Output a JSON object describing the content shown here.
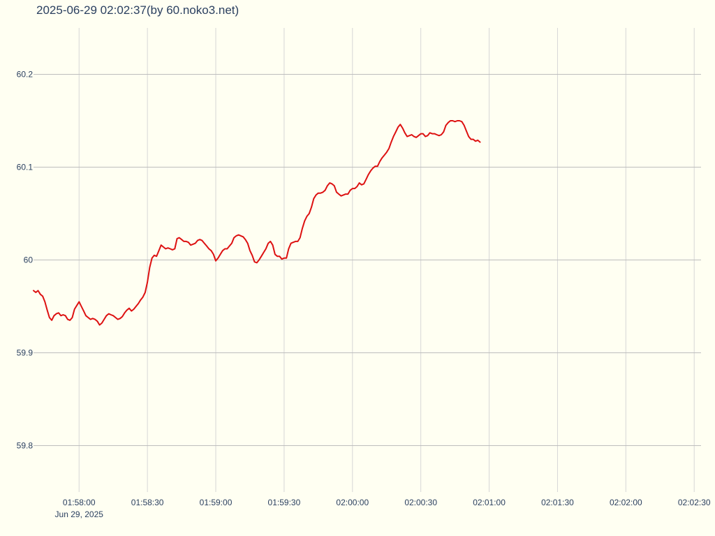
{
  "chart_data": {
    "type": "line",
    "title": "2025-06-29 02:02:37(by 60.noko3.net)",
    "xlabel": "",
    "ylabel": "",
    "x_range": [
      "01:57:40",
      "02:02:33"
    ],
    "ylim": [
      59.75,
      60.25
    ],
    "x_ticks": [
      {
        "time": "01:58:00",
        "label": "01:58:00",
        "sublabel": "Jun 29, 2025"
      },
      {
        "time": "01:58:30",
        "label": "01:58:30"
      },
      {
        "time": "01:59:00",
        "label": "01:59:00"
      },
      {
        "time": "01:59:30",
        "label": "01:59:30"
      },
      {
        "time": "02:00:00",
        "label": "02:00:00"
      },
      {
        "time": "02:00:30",
        "label": "02:00:30"
      },
      {
        "time": "02:01:00",
        "label": "02:01:00"
      },
      {
        "time": "02:01:30",
        "label": "02:01:30"
      },
      {
        "time": "02:02:00",
        "label": "02:02:00"
      },
      {
        "time": "02:02:30",
        "label": "02:02:30"
      }
    ],
    "y_ticks": [
      {
        "value": 59.8,
        "label": "59.8"
      },
      {
        "value": 59.9,
        "label": "59.9"
      },
      {
        "value": 60.0,
        "label": "60"
      },
      {
        "value": 60.1,
        "label": "60.1"
      },
      {
        "value": 60.2,
        "label": "60.2"
      }
    ],
    "grid": true,
    "legend": false,
    "series": [
      {
        "color": "#dd1111",
        "points": [
          [
            "01:57:40",
            59.967
          ],
          [
            "01:57:41",
            59.965
          ],
          [
            "01:57:42",
            59.967
          ],
          [
            "01:57:43",
            59.963
          ],
          [
            "01:57:44",
            59.961
          ],
          [
            "01:57:45",
            59.955
          ],
          [
            "01:57:46",
            59.946
          ],
          [
            "01:57:47",
            59.938
          ],
          [
            "01:57:48",
            59.935
          ],
          [
            "01:57:49",
            59.94
          ],
          [
            "01:57:50",
            59.942
          ],
          [
            "01:57:51",
            59.943
          ],
          [
            "01:57:52",
            59.94
          ],
          [
            "01:57:53",
            59.941
          ],
          [
            "01:57:54",
            59.94
          ],
          [
            "01:57:55",
            59.936
          ],
          [
            "01:57:56",
            59.935
          ],
          [
            "01:57:57",
            59.938
          ],
          [
            "01:57:58",
            59.947
          ],
          [
            "01:57:59",
            59.951
          ],
          [
            "01:58:00",
            59.955
          ],
          [
            "01:58:01",
            59.95
          ],
          [
            "01:58:02",
            59.945
          ],
          [
            "01:58:03",
            59.94
          ],
          [
            "01:58:04",
            59.938
          ],
          [
            "01:58:05",
            59.936
          ],
          [
            "01:58:06",
            59.937
          ],
          [
            "01:58:07",
            59.936
          ],
          [
            "01:58:08",
            59.934
          ],
          [
            "01:58:09",
            59.93
          ],
          [
            "01:58:10",
            59.932
          ],
          [
            "01:58:11",
            59.936
          ],
          [
            "01:58:12",
            59.94
          ],
          [
            "01:58:13",
            59.942
          ],
          [
            "01:58:14",
            59.941
          ],
          [
            "01:58:15",
            59.94
          ],
          [
            "01:58:16",
            59.938
          ],
          [
            "01:58:17",
            59.936
          ],
          [
            "01:58:18",
            59.937
          ],
          [
            "01:58:19",
            59.939
          ],
          [
            "01:58:20",
            59.943
          ],
          [
            "01:58:21",
            59.946
          ],
          [
            "01:58:22",
            59.948
          ],
          [
            "01:58:23",
            59.945
          ],
          [
            "01:58:24",
            59.947
          ],
          [
            "01:58:25",
            59.95
          ],
          [
            "01:58:26",
            59.953
          ],
          [
            "01:58:27",
            59.957
          ],
          [
            "01:58:28",
            59.96
          ],
          [
            "01:58:29",
            59.965
          ],
          [
            "01:58:30",
            59.976
          ],
          [
            "01:58:31",
            59.992
          ],
          [
            "01:58:32",
            60.002
          ],
          [
            "01:58:33",
            60.005
          ],
          [
            "01:58:34",
            60.004
          ],
          [
            "01:58:35",
            60.01
          ],
          [
            "01:58:36",
            60.016
          ],
          [
            "01:58:37",
            60.014
          ],
          [
            "01:58:38",
            60.012
          ],
          [
            "01:58:39",
            60.013
          ],
          [
            "01:58:40",
            60.012
          ],
          [
            "01:58:41",
            60.011
          ],
          [
            "01:58:42",
            60.012
          ],
          [
            "01:58:43",
            60.023
          ],
          [
            "01:58:44",
            60.024
          ],
          [
            "01:58:45",
            60.022
          ],
          [
            "01:58:46",
            60.02
          ],
          [
            "01:58:47",
            60.02
          ],
          [
            "01:58:48",
            60.019
          ],
          [
            "01:58:49",
            60.016
          ],
          [
            "01:58:50",
            60.017
          ],
          [
            "01:58:51",
            60.018
          ],
          [
            "01:58:52",
            60.021
          ],
          [
            "01:58:53",
            60.022
          ],
          [
            "01:58:54",
            60.021
          ],
          [
            "01:58:55",
            60.018
          ],
          [
            "01:58:56",
            60.015
          ],
          [
            "01:58:57",
            60.012
          ],
          [
            "01:58:58",
            60.01
          ],
          [
            "01:58:59",
            60.006
          ],
          [
            "01:59:00",
            59.999
          ],
          [
            "01:59:01",
            60.002
          ],
          [
            "01:59:02",
            60.006
          ],
          [
            "01:59:03",
            60.01
          ],
          [
            "01:59:04",
            60.012
          ],
          [
            "01:59:05",
            60.012
          ],
          [
            "01:59:06",
            60.015
          ],
          [
            "01:59:07",
            60.018
          ],
          [
            "01:59:08",
            60.024
          ],
          [
            "01:59:09",
            60.026
          ],
          [
            "01:59:10",
            60.027
          ],
          [
            "01:59:11",
            60.026
          ],
          [
            "01:59:12",
            60.025
          ],
          [
            "01:59:13",
            60.022
          ],
          [
            "01:59:14",
            60.018
          ],
          [
            "01:59:15",
            60.01
          ],
          [
            "01:59:16",
            60.005
          ],
          [
            "01:59:17",
            59.998
          ],
          [
            "01:59:18",
            59.997
          ],
          [
            "01:59:19",
            60.0
          ],
          [
            "01:59:20",
            60.004
          ],
          [
            "01:59:21",
            60.008
          ],
          [
            "01:59:22",
            60.012
          ],
          [
            "01:59:23",
            60.018
          ],
          [
            "01:59:24",
            60.02
          ],
          [
            "01:59:25",
            60.016
          ],
          [
            "01:59:26",
            60.006
          ],
          [
            "01:59:27",
            60.004
          ],
          [
            "01:59:28",
            60.004
          ],
          [
            "01:59:29",
            60.001
          ],
          [
            "01:59:30",
            60.002
          ],
          [
            "01:59:31",
            60.002
          ],
          [
            "01:59:32",
            60.012
          ],
          [
            "01:59:33",
            60.018
          ],
          [
            "01:59:34",
            60.019
          ],
          [
            "01:59:35",
            60.02
          ],
          [
            "01:59:36",
            60.02
          ],
          [
            "01:59:37",
            60.024
          ],
          [
            "01:59:38",
            60.034
          ],
          [
            "01:59:39",
            60.042
          ],
          [
            "01:59:40",
            60.047
          ],
          [
            "01:59:41",
            60.05
          ],
          [
            "01:59:42",
            60.057
          ],
          [
            "01:59:43",
            60.066
          ],
          [
            "01:59:44",
            60.07
          ],
          [
            "01:59:45",
            60.072
          ],
          [
            "01:59:46",
            60.072
          ],
          [
            "01:59:47",
            60.073
          ],
          [
            "01:59:48",
            60.075
          ],
          [
            "01:59:49",
            60.08
          ],
          [
            "01:59:50",
            60.083
          ],
          [
            "01:59:51",
            60.082
          ],
          [
            "01:59:52",
            60.08
          ],
          [
            "01:59:53",
            60.073
          ],
          [
            "01:59:54",
            60.071
          ],
          [
            "01:59:55",
            60.069
          ],
          [
            "01:59:56",
            60.07
          ],
          [
            "01:59:57",
            60.071
          ],
          [
            "01:59:58",
            60.071
          ],
          [
            "01:59:59",
            60.075
          ],
          [
            "02:00:00",
            60.077
          ],
          [
            "02:00:01",
            60.077
          ],
          [
            "02:00:02",
            60.079
          ],
          [
            "02:00:03",
            60.083
          ],
          [
            "02:00:04",
            60.081
          ],
          [
            "02:00:05",
            60.082
          ],
          [
            "02:00:06",
            60.087
          ],
          [
            "02:00:07",
            60.092
          ],
          [
            "02:00:08",
            60.096
          ],
          [
            "02:00:09",
            60.099
          ],
          [
            "02:00:10",
            60.101
          ],
          [
            "02:00:11",
            60.101
          ],
          [
            "02:00:12",
            60.106
          ],
          [
            "02:00:13",
            60.11
          ],
          [
            "02:00:14",
            60.113
          ],
          [
            "02:00:15",
            60.116
          ],
          [
            "02:00:16",
            60.12
          ],
          [
            "02:00:17",
            60.127
          ],
          [
            "02:00:18",
            60.133
          ],
          [
            "02:00:19",
            60.138
          ],
          [
            "02:00:20",
            60.143
          ],
          [
            "02:00:21",
            60.146
          ],
          [
            "02:00:22",
            60.142
          ],
          [
            "02:00:23",
            60.137
          ],
          [
            "02:00:24",
            60.133
          ],
          [
            "02:00:25",
            60.134
          ],
          [
            "02:00:26",
            60.135
          ],
          [
            "02:00:27",
            60.133
          ],
          [
            "02:00:28",
            60.132
          ],
          [
            "02:00:29",
            60.134
          ],
          [
            "02:00:30",
            60.136
          ],
          [
            "02:00:31",
            60.136
          ],
          [
            "02:00:32",
            60.133
          ],
          [
            "02:00:33",
            60.134
          ],
          [
            "02:00:34",
            60.137
          ],
          [
            "02:00:35",
            60.136
          ],
          [
            "02:00:36",
            60.136
          ],
          [
            "02:00:37",
            60.135
          ],
          [
            "02:00:38",
            60.134
          ],
          [
            "02:00:39",
            60.135
          ],
          [
            "02:00:40",
            60.138
          ],
          [
            "02:00:41",
            60.145
          ],
          [
            "02:00:42",
            60.148
          ],
          [
            "02:00:43",
            60.15
          ],
          [
            "02:00:44",
            60.15
          ],
          [
            "02:00:45",
            60.149
          ],
          [
            "02:00:46",
            60.15
          ],
          [
            "02:00:47",
            60.15
          ],
          [
            "02:00:48",
            60.149
          ],
          [
            "02:00:49",
            60.145
          ],
          [
            "02:00:50",
            60.139
          ],
          [
            "02:00:51",
            60.133
          ],
          [
            "02:00:52",
            60.13
          ],
          [
            "02:00:53",
            60.13
          ],
          [
            "02:00:54",
            60.128
          ],
          [
            "02:00:55",
            60.129
          ],
          [
            "02:00:56",
            60.127
          ]
        ]
      }
    ]
  }
}
